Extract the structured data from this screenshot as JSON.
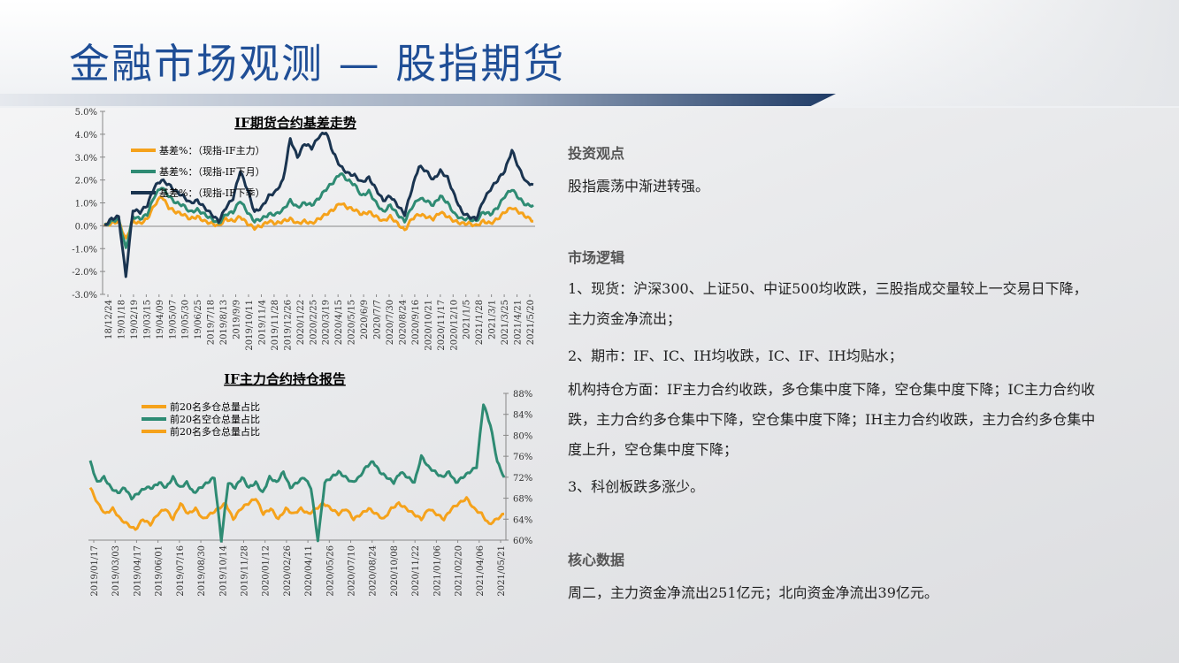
{
  "page": {
    "title": "金融市场观测 — 股指期货"
  },
  "right_panel": {
    "sections": [
      {
        "heading": "投资观点",
        "paragraphs": [
          "股指震荡中渐进转强。"
        ]
      },
      {
        "heading": "市场逻辑",
        "paragraphs": [
          "1、现货：沪深300、上证50、中证500均收跌，三股指成交量较上一交易日下降，主力资金净流出；",
          "2、期市：IF、IC、IH均收跌，IC、IF、IH均贴水；",
          "机构持仓方面：IF主力合约收跌，多仓集中度下降，空仓集中度下降；IC主力合约收跌，主力合约多仓集中下降，空仓集中度下降；IH主力合约收跌，主力合约多仓集中度上升，空仓集中度下降；",
          "3、科创板跌多涨少。"
        ]
      },
      {
        "heading": "核心数据",
        "paragraphs": [
          "周二，主力资金净流出251亿元；北向资金净流出39亿元。"
        ]
      }
    ]
  },
  "chart_data": [
    {
      "type": "line",
      "title": "IF期货合约基差走势",
      "y_ticks": [
        "5.0%",
        "4.0%",
        "3.0%",
        "2.0%",
        "1.0%",
        "0.0%",
        "-1.0%",
        "-2.0%",
        "-3.0%"
      ],
      "ylim": [
        -3,
        5
      ],
      "x_ticks": [
        "18/12/24",
        "19/01/18",
        "19/02/19",
        "19/03/15",
        "19/04/09",
        "19/05/07",
        "19/05/30",
        "19/06/25",
        "2019/7/18",
        "2019/8/13",
        "2019/9/9",
        "2019/10/11",
        "2019/11/4",
        "2019/11/28",
        "2019/12/26",
        "2020/1/22",
        "2020/2/25",
        "2020/3/19",
        "2020/4/15",
        "2020/5/15",
        "2020/6/9",
        "2020/7/7",
        "2020/7/30",
        "2020/8/24",
        "2020/9/16",
        "2020/10/21",
        "2020/11/17",
        "2020/12/10",
        "2021/1/5",
        "2021/1/28",
        "2021/3/1",
        "2021/3/25",
        "2021/4/21",
        "2021/5/20"
      ],
      "legend_position": "top-left",
      "series": [
        {
          "name": "基差%：（现指-IF主力）",
          "color": "#f5a21b",
          "values": [
            0.0,
            0.1,
            0.2,
            -0.6,
            0.2,
            0.1,
            0.3,
            0.9,
            1.3,
            0.8,
            0.6,
            0.5,
            0.3,
            0.4,
            0.2,
            0.1,
            0.0,
            0.3,
            0.2,
            0.4,
            0.1,
            -0.1,
            0.0,
            0.2,
            0.1,
            0.2,
            0.3,
            0.1,
            0.2,
            0.1,
            0.3,
            0.5,
            0.7,
            1.0,
            0.8,
            0.7,
            0.5,
            0.6,
            0.4,
            0.2,
            0.4,
            0.1,
            -0.2,
            0.3,
            0.5,
            0.4,
            0.3,
            0.6,
            0.4,
            0.2,
            0.1,
            0.1,
            0.0,
            0.2,
            0.1,
            0.3,
            0.6,
            0.8,
            0.6,
            0.4,
            0.2
          ]
        },
        {
          "name": "基差%：（现指-IF下月）",
          "color": "#2e8b73",
          "values": [
            0.0,
            0.2,
            0.3,
            -1.0,
            0.4,
            0.3,
            0.5,
            1.3,
            1.7,
            1.3,
            1.0,
            0.9,
            0.6,
            0.7,
            0.5,
            0.3,
            0.1,
            0.5,
            0.6,
            1.1,
            0.6,
            0.2,
            0.3,
            0.5,
            0.5,
            0.7,
            1.1,
            0.8,
            1.0,
            0.9,
            1.2,
            1.6,
            1.9,
            2.3,
            2.0,
            1.8,
            1.3,
            1.5,
            1.0,
            0.6,
            0.9,
            0.5,
            0.2,
            0.8,
            1.2,
            1.1,
            0.9,
            1.3,
            1.0,
            0.5,
            0.3,
            0.3,
            0.2,
            0.6,
            0.5,
            0.8,
            1.3,
            1.6,
            1.2,
            0.9,
            0.9
          ]
        },
        {
          "name": "基差%：（现指-IF下季）",
          "color": "#1a3450",
          "values": [
            0.0,
            0.3,
            0.4,
            -2.2,
            0.7,
            0.6,
            0.9,
            1.7,
            2.0,
            1.8,
            1.5,
            1.3,
            1.0,
            1.1,
            0.8,
            0.5,
            0.2,
            0.8,
            1.2,
            2.4,
            1.6,
            0.6,
            0.8,
            1.3,
            1.5,
            2.0,
            3.8,
            3.0,
            3.6,
            3.4,
            3.9,
            4.1,
            3.2,
            2.6,
            2.3,
            2.2,
            1.9,
            2.1,
            1.6,
            1.1,
            1.3,
            0.9,
            0.5,
            1.6,
            2.6,
            2.4,
            2.0,
            2.4,
            2.1,
            1.3,
            0.6,
            0.4,
            0.3,
            1.1,
            1.6,
            2.0,
            2.4,
            3.3,
            2.5,
            1.9,
            1.8
          ]
        }
      ]
    },
    {
      "type": "line",
      "title": "IF主力合约持仓报告",
      "y_ticks": [
        "88%",
        "84%",
        "80%",
        "76%",
        "72%",
        "68%",
        "64%",
        "60%"
      ],
      "ylim": [
        60,
        88
      ],
      "y_axis_side": "right",
      "x_ticks": [
        "2019/01/17",
        "2019/03/03",
        "2019/04/17",
        "2019/06/01",
        "2019/07/16",
        "2019/08/30",
        "2019/10/14",
        "2019/11/28",
        "2020/01/12",
        "2020/02/26",
        "2020/04/11",
        "2020/05/26",
        "2020/07/10",
        "2020/08/24",
        "2020/10/08",
        "2020/11/22",
        "2021/01/06",
        "2021/02/20",
        "2021/04/06",
        "2021/05/21"
      ],
      "legend_position": "top-left",
      "series": [
        {
          "name": "前20名多仓总量占比",
          "color": "#f5a21b",
          "values": [
            70,
            67,
            65,
            66,
            64,
            63,
            62,
            64,
            63,
            65,
            66,
            64,
            67,
            65,
            66,
            64,
            65,
            66,
            67,
            64,
            66,
            67,
            68,
            65,
            66,
            64,
            66,
            65,
            66,
            65,
            66,
            67,
            66,
            65,
            66,
            64,
            65,
            66,
            65,
            64,
            66,
            67,
            66,
            65,
            64,
            66,
            65,
            64,
            66,
            67,
            68,
            66,
            65,
            63,
            64,
            65
          ]
        },
        {
          "name": "前20名空仓总量占比",
          "color": "#2e8b73",
          "values": [
            75,
            71,
            72,
            70,
            69,
            70,
            68,
            69,
            70,
            70,
            71,
            70,
            72,
            70,
            71,
            69,
            70,
            71,
            72,
            60,
            71,
            70,
            72,
            70,
            71,
            69,
            72,
            71,
            73,
            70,
            71,
            72,
            70,
            60,
            71,
            72,
            73,
            72,
            71,
            72,
            74,
            75,
            73,
            72,
            71,
            73,
            72,
            71,
            76,
            74,
            73,
            72,
            73,
            71,
            72,
            73,
            74,
            86,
            82,
            75,
            72
          ]
        },
        {
          "name": "前20名多仓总量占比",
          "color": "#f5a21b",
          "values": []
        }
      ]
    }
  ]
}
